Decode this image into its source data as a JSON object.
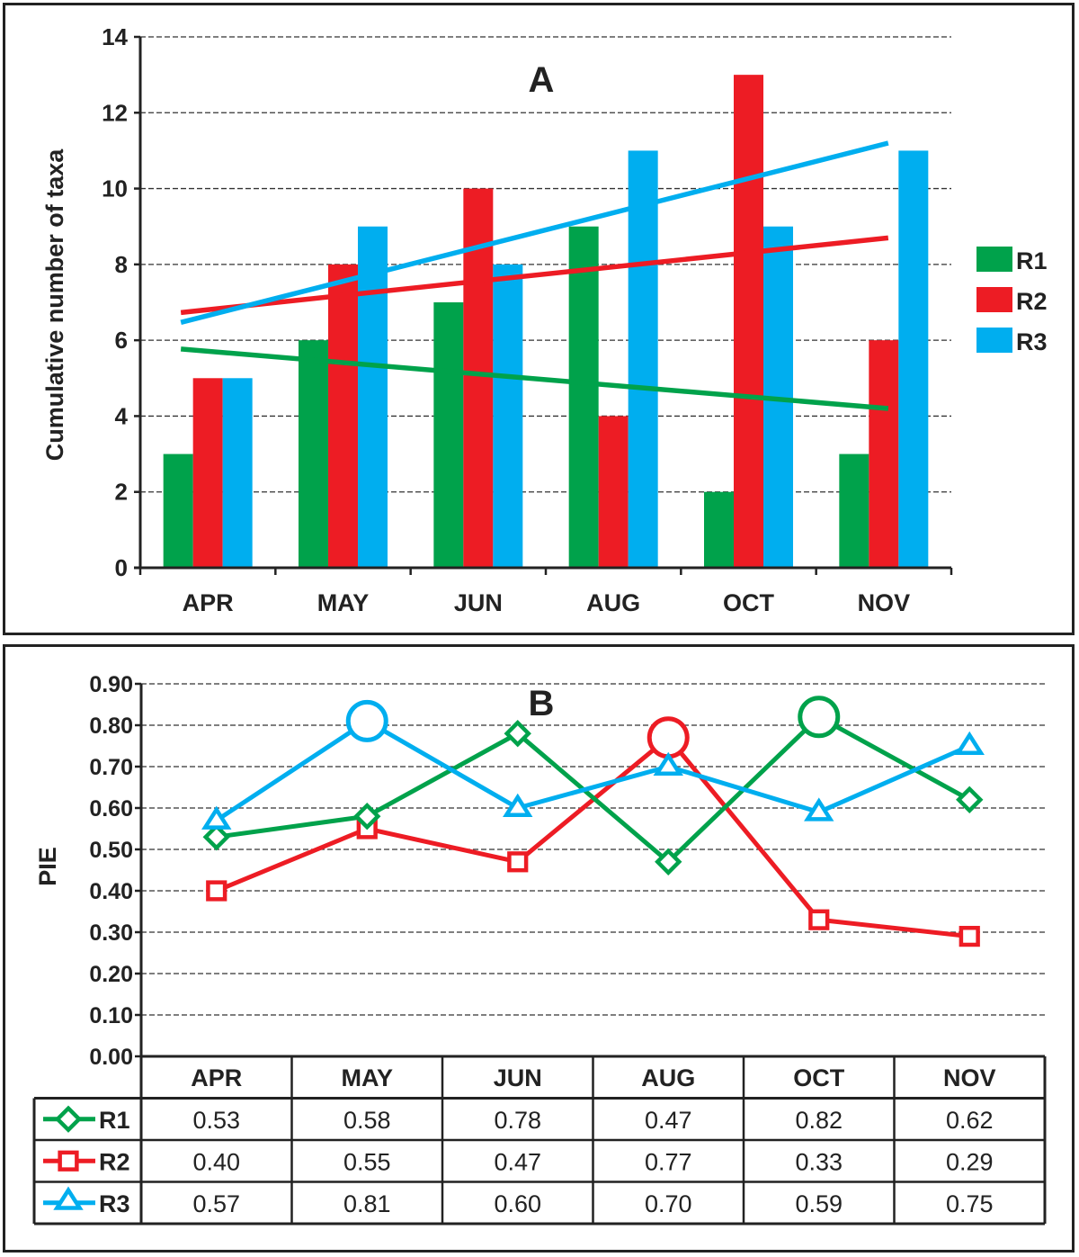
{
  "colors": {
    "R1": "#00a24b",
    "R2": "#ed1c24",
    "R3": "#00aeef",
    "axis": "#222222"
  },
  "chart_data": [
    {
      "type": "bar",
      "title": "A",
      "ylabel": "Cumulative number of taxa",
      "xlabel": "",
      "categories": [
        "APR",
        "MAY",
        "JUN",
        "AUG",
        "OCT",
        "NOV"
      ],
      "yticks": [
        "0",
        "2",
        "4",
        "6",
        "8",
        "10",
        "12",
        "14"
      ],
      "ylim": [
        0,
        14
      ],
      "grid": true,
      "legend": "right",
      "series": [
        {
          "name": "R1",
          "color": "#00a24b",
          "values": [
            3,
            6,
            7,
            9,
            2,
            3
          ],
          "trend": [
            5.77,
            4.2
          ]
        },
        {
          "name": "R2",
          "color": "#ed1c24",
          "values": [
            5,
            8,
            10,
            4,
            13,
            6
          ],
          "trend": [
            6.73,
            8.7
          ]
        },
        {
          "name": "R3",
          "color": "#00aeef",
          "values": [
            5,
            9,
            8,
            11,
            9,
            11
          ],
          "trend": [
            6.47,
            11.2
          ]
        }
      ]
    },
    {
      "type": "line",
      "title": "B",
      "ylabel": "PIE",
      "xlabel": "",
      "categories": [
        "APR",
        "MAY",
        "JUN",
        "AUG",
        "OCT",
        "NOV"
      ],
      "yticks": [
        "0.00",
        "0.10",
        "0.20",
        "0.30",
        "0.40",
        "0.50",
        "0.60",
        "0.70",
        "0.80",
        "0.90"
      ],
      "ylim": [
        0,
        0.9
      ],
      "grid": true,
      "legend": "table below",
      "series": [
        {
          "name": "R1",
          "color": "#00a24b",
          "marker": "diamond",
          "values": [
            0.53,
            0.58,
            0.78,
            0.47,
            0.82,
            0.62
          ],
          "labels": [
            "0.53",
            "0.58",
            "0.78",
            "0.47",
            "0.82",
            "0.62"
          ],
          "highlight": [
            4
          ]
        },
        {
          "name": "R2",
          "color": "#ed1c24",
          "marker": "square",
          "values": [
            0.4,
            0.55,
            0.47,
            0.77,
            0.33,
            0.29
          ],
          "labels": [
            "0.40",
            "0.55",
            "0.47",
            "0.77",
            "0.33",
            "0.29"
          ],
          "highlight": [
            3
          ]
        },
        {
          "name": "R3",
          "color": "#00aeef",
          "marker": "triangle",
          "values": [
            0.57,
            0.81,
            0.6,
            0.7,
            0.59,
            0.75
          ],
          "labels": [
            "0.57",
            "0.81",
            "0.60",
            "0.70",
            "0.59",
            "0.75"
          ],
          "highlight": [
            1
          ]
        }
      ]
    }
  ]
}
